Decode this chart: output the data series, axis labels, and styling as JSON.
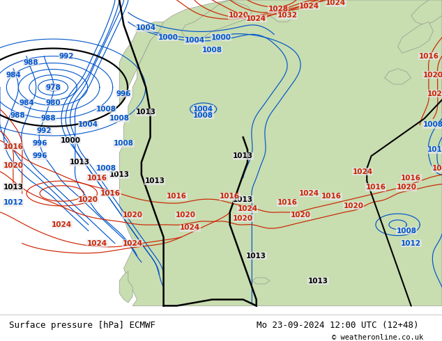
{
  "title_left": "Surface pressure [hPa] ECMWF",
  "title_right": "Mo 23-09-2024 12:00 UTC (12+48)",
  "copyright": "© weatheronline.co.uk",
  "fig_width": 6.34,
  "fig_height": 4.9,
  "dpi": 100,
  "ocean_color": "#e8e8ec",
  "land_color": "#c8ddb0",
  "border_color": "#888888",
  "footer_bg": "#ffffff",
  "footer_text_color": "#000000",
  "isobar_blue": "#0055cc",
  "isobar_red": "#cc2200",
  "isobar_black": "#000000",
  "label_fontsize": 7.5,
  "footer_fontsize": 9
}
